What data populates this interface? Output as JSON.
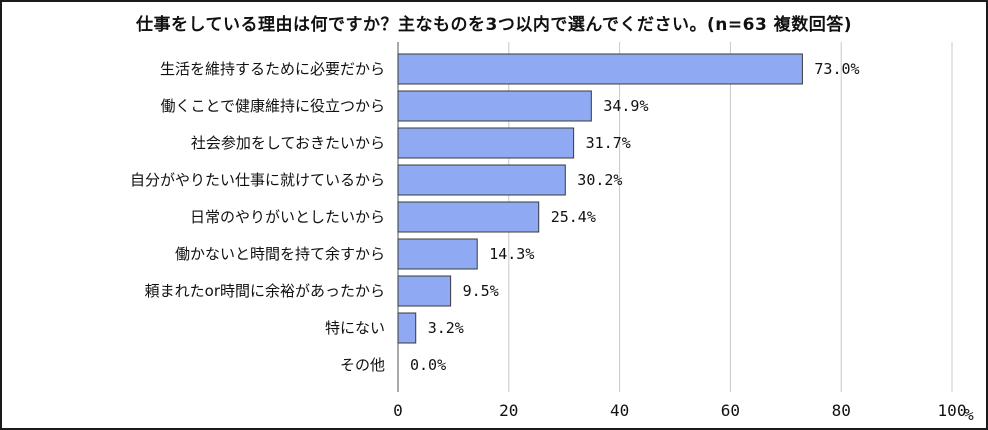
{
  "chart_data": {
    "type": "bar",
    "orientation": "horizontal",
    "title": "仕事をしている理由は何ですか？主なものを3つ以内で選んでください。(n=63 複数回答)",
    "categories": [
      "生活を維持するために必要だから",
      "働くことで健康維持に役立つから",
      "社会参加をしておきたいから",
      "自分がやりたい仕事に就けているから",
      "日常のやりがいとしたいから",
      "働かないと時間を持て余すから",
      "頼まれたor時間に余裕があったから",
      "特にない",
      "その他"
    ],
    "values": [
      73.0,
      34.9,
      31.7,
      30.2,
      25.4,
      14.3,
      9.5,
      3.2,
      0.0
    ],
    "value_labels": [
      "73.0%",
      "34.9%",
      "31.7%",
      "30.2%",
      "25.4%",
      "14.3%",
      "9.5%",
      "3.2%",
      "0.0%"
    ],
    "x_ticks": [
      "0",
      "20",
      "40",
      "60",
      "80",
      "100"
    ],
    "xlim": [
      0,
      100
    ],
    "unit": "%",
    "grid": "vertical",
    "bar_color": "#8fa9f3",
    "bar_edge_color": "#3a3a3a"
  }
}
